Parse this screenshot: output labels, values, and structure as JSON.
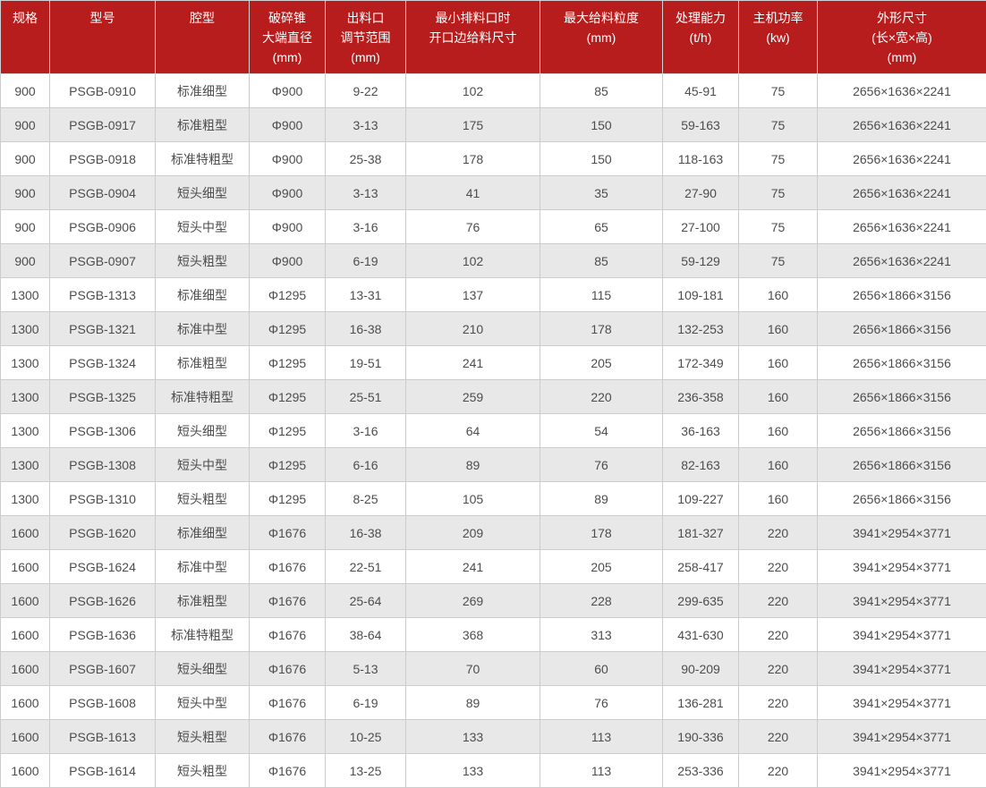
{
  "colors": {
    "header_background": "#b81d1d",
    "header_text": "#ffffff",
    "row_stripe": "#e8e8e8",
    "border": "#cccccc",
    "body_text": "#4d4d4d"
  },
  "table": {
    "columns": [
      {
        "id": "spec",
        "lines": [
          "规格"
        ]
      },
      {
        "id": "model",
        "lines": [
          "型号"
        ]
      },
      {
        "id": "cavity",
        "lines": [
          "腔型"
        ]
      },
      {
        "id": "cone-diameter",
        "lines": [
          "破碎锥",
          "大端直径",
          "(mm)"
        ]
      },
      {
        "id": "discharge-range",
        "lines": [
          "出料口",
          "调节范围",
          "(mm)"
        ]
      },
      {
        "id": "feed-opening",
        "lines": [
          "最小排料口时",
          "开口边给料尺寸"
        ]
      },
      {
        "id": "max-feed-size",
        "lines": [
          "最大给料粒度",
          "(mm)"
        ]
      },
      {
        "id": "capacity",
        "lines": [
          "处理能力",
          "(t/h)"
        ]
      },
      {
        "id": "power",
        "lines": [
          "主机功率",
          "(kw)"
        ]
      },
      {
        "id": "dimensions",
        "lines": [
          "外形尺寸",
          "(长×宽×高)",
          "(mm)"
        ]
      }
    ],
    "rows": [
      [
        "900",
        "PSGB-0910",
        "标准细型",
        "Φ900",
        "9-22",
        "102",
        "85",
        "45-91",
        "75",
        "2656×1636×2241"
      ],
      [
        "900",
        "PSGB-0917",
        "标准粗型",
        "Φ900",
        "3-13",
        "175",
        "150",
        "59-163",
        "75",
        "2656×1636×2241"
      ],
      [
        "900",
        "PSGB-0918",
        "标准特粗型",
        "Φ900",
        "25-38",
        "178",
        "150",
        "118-163",
        "75",
        "2656×1636×2241"
      ],
      [
        "900",
        "PSGB-0904",
        "短头细型",
        "Φ900",
        "3-13",
        "41",
        "35",
        "27-90",
        "75",
        "2656×1636×2241"
      ],
      [
        "900",
        "PSGB-0906",
        "短头中型",
        "Φ900",
        "3-16",
        "76",
        "65",
        "27-100",
        "75",
        "2656×1636×2241"
      ],
      [
        "900",
        "PSGB-0907",
        "短头粗型",
        "Φ900",
        "6-19",
        "102",
        "85",
        "59-129",
        "75",
        "2656×1636×2241"
      ],
      [
        "1300",
        "PSGB-1313",
        "标准细型",
        "Φ1295",
        "13-31",
        "137",
        "115",
        "109-181",
        "160",
        "2656×1866×3156"
      ],
      [
        "1300",
        "PSGB-1321",
        "标准中型",
        "Φ1295",
        "16-38",
        "210",
        "178",
        "132-253",
        "160",
        "2656×1866×3156"
      ],
      [
        "1300",
        "PSGB-1324",
        "标准粗型",
        "Φ1295",
        "19-51",
        "241",
        "205",
        "172-349",
        "160",
        "2656×1866×3156"
      ],
      [
        "1300",
        "PSGB-1325",
        "标准特粗型",
        "Φ1295",
        "25-51",
        "259",
        "220",
        "236-358",
        "160",
        "2656×1866×3156"
      ],
      [
        "1300",
        "PSGB-1306",
        "短头细型",
        "Φ1295",
        "3-16",
        "64",
        "54",
        "36-163",
        "160",
        "2656×1866×3156"
      ],
      [
        "1300",
        "PSGB-1308",
        "短头中型",
        "Φ1295",
        "6-16",
        "89",
        "76",
        "82-163",
        "160",
        "2656×1866×3156"
      ],
      [
        "1300",
        "PSGB-1310",
        "短头粗型",
        "Φ1295",
        "8-25",
        "105",
        "89",
        "109-227",
        "160",
        "2656×1866×3156"
      ],
      [
        "1600",
        "PSGB-1620",
        "标准细型",
        "Φ1676",
        "16-38",
        "209",
        "178",
        "181-327",
        "220",
        "3941×2954×3771"
      ],
      [
        "1600",
        "PSGB-1624",
        "标准中型",
        "Φ1676",
        "22-51",
        "241",
        "205",
        "258-417",
        "220",
        "3941×2954×3771"
      ],
      [
        "1600",
        "PSGB-1626",
        "标准粗型",
        "Φ1676",
        "25-64",
        "269",
        "228",
        "299-635",
        "220",
        "3941×2954×3771"
      ],
      [
        "1600",
        "PSGB-1636",
        "标准特粗型",
        "Φ1676",
        "38-64",
        "368",
        "313",
        "431-630",
        "220",
        "3941×2954×3771"
      ],
      [
        "1600",
        "PSGB-1607",
        "短头细型",
        "Φ1676",
        "5-13",
        "70",
        "60",
        "90-209",
        "220",
        "3941×2954×3771"
      ],
      [
        "1600",
        "PSGB-1608",
        "短头中型",
        "Φ1676",
        "6-19",
        "89",
        "76",
        "136-281",
        "220",
        "3941×2954×3771"
      ],
      [
        "1600",
        "PSGB-1613",
        "短头粗型",
        "Φ1676",
        "10-25",
        "133",
        "113",
        "190-336",
        "220",
        "3941×2954×3771"
      ],
      [
        "1600",
        "PSGB-1614",
        "短头粗型",
        "Φ1676",
        "13-25",
        "133",
        "113",
        "253-336",
        "220",
        "3941×2954×3771"
      ]
    ]
  }
}
